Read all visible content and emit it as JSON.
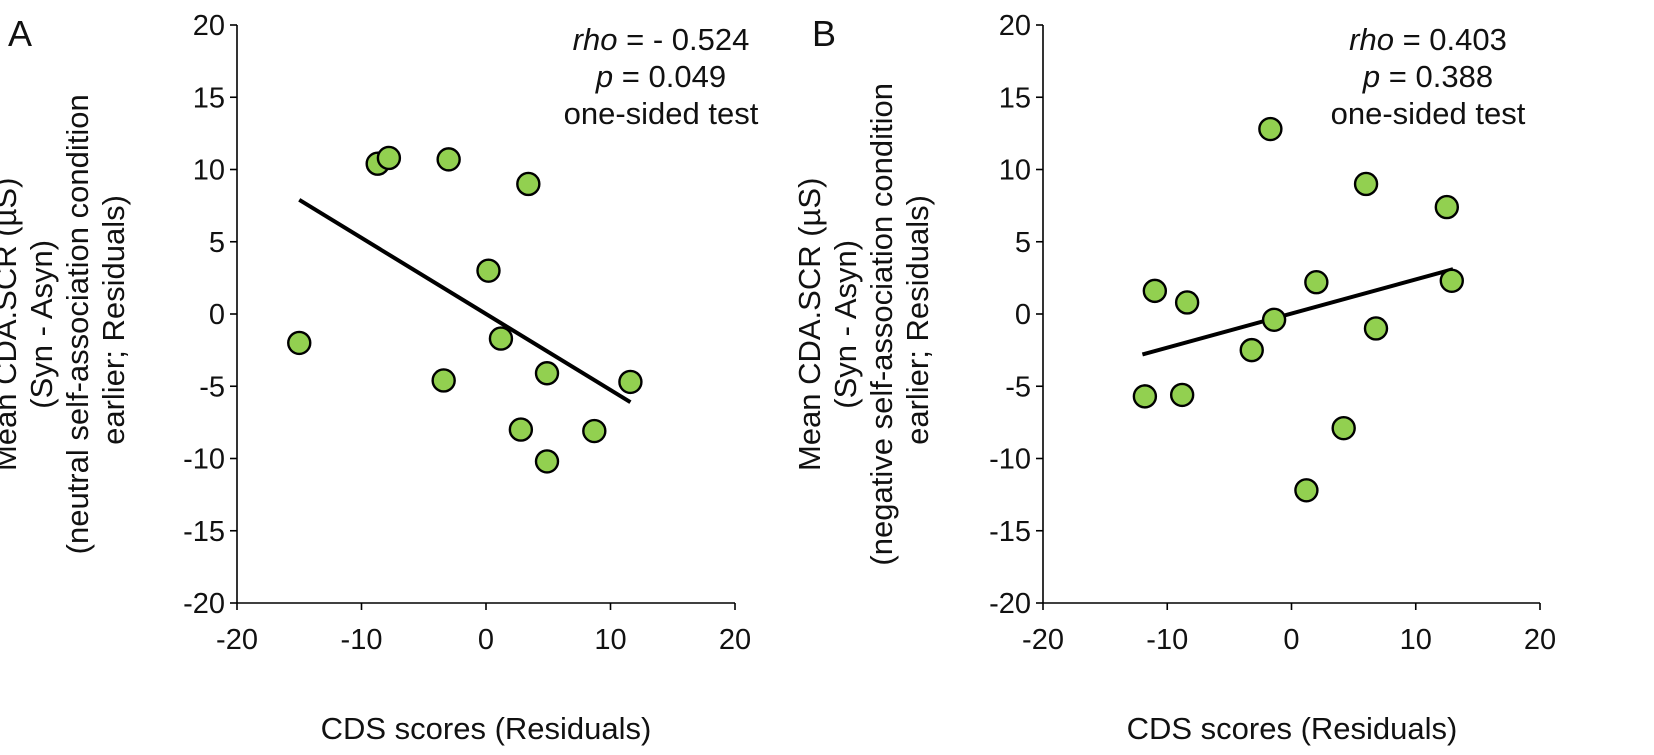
{
  "chart_data": [
    {
      "type": "scatter",
      "panel_label": "A",
      "xlabel": "CDS scores (Residuals)",
      "ylabel_lines": [
        "Mean CDA.SCR (µS)",
        "(Syn - Asyn)",
        "(neutral self-association condition",
        "earlier; Residuals)"
      ],
      "xlim": [
        -20,
        20
      ],
      "ylim": [
        -20,
        20
      ],
      "x_ticks": [
        -20,
        -10,
        0,
        10,
        20
      ],
      "y_ticks": [
        20,
        15,
        10,
        5,
        0,
        -5,
        -10,
        -15,
        -20
      ],
      "stats": {
        "rho_label": "rho",
        "rho_rest": " = - 0.524",
        "p_label": "p",
        "p_rest": " = 0.049",
        "test": "one-sided test"
      },
      "points": [
        {
          "x": -15.0,
          "y": -2.0
        },
        {
          "x": -8.7,
          "y": 10.4
        },
        {
          "x": -7.8,
          "y": 10.8
        },
        {
          "x": -3.0,
          "y": 10.7
        },
        {
          "x": -3.4,
          "y": -4.6
        },
        {
          "x": 0.2,
          "y": 3.0
        },
        {
          "x": 1.2,
          "y": -1.7
        },
        {
          "x": 3.4,
          "y": 9.0
        },
        {
          "x": 2.8,
          "y": -8.0
        },
        {
          "x": 4.9,
          "y": -4.1
        },
        {
          "x": 4.9,
          "y": -10.2
        },
        {
          "x": 8.7,
          "y": -8.1
        },
        {
          "x": 11.6,
          "y": -4.7
        }
      ],
      "fit_line": {
        "x": [
          -15.0,
          11.6
        ],
        "y": [
          7.9,
          -6.1
        ]
      },
      "marker_color": "#92d050",
      "line_color": "#000000"
    },
    {
      "type": "scatter",
      "panel_label": "B",
      "xlabel": "CDS scores (Residuals)",
      "ylabel_lines": [
        "Mean CDA.SCR (µS)",
        "(Syn - Asyn)",
        "(negative self-association condition",
        "earlier; Residuals)"
      ],
      "xlim": [
        -20,
        20
      ],
      "ylim": [
        -20,
        20
      ],
      "x_ticks": [
        -20,
        -10,
        0,
        10,
        20
      ],
      "y_ticks": [
        20,
        15,
        10,
        5,
        0,
        -5,
        -10,
        -15,
        -20
      ],
      "stats": {
        "rho_label": "rho",
        "rho_rest": " = 0.403",
        "p_label": "p",
        "p_rest": " = 0.388",
        "test": "one-sided test"
      },
      "points": [
        {
          "x": -11.8,
          "y": -5.7
        },
        {
          "x": -11.0,
          "y": 1.6
        },
        {
          "x": -8.8,
          "y": -5.6
        },
        {
          "x": -8.4,
          "y": 0.8
        },
        {
          "x": -3.2,
          "y": -2.5
        },
        {
          "x": -1.7,
          "y": 12.8
        },
        {
          "x": -1.4,
          "y": -0.4
        },
        {
          "x": 1.2,
          "y": -12.2
        },
        {
          "x": 2.0,
          "y": 2.2
        },
        {
          "x": 4.2,
          "y": -7.9
        },
        {
          "x": 6.0,
          "y": 9.0
        },
        {
          "x": 6.8,
          "y": -1.0
        },
        {
          "x": 12.5,
          "y": 7.4
        },
        {
          "x": 12.9,
          "y": 2.3
        }
      ],
      "fit_line": {
        "x": [
          -12.0,
          13.0
        ],
        "y": [
          -2.8,
          3.1
        ]
      },
      "marker_color": "#92d050",
      "line_color": "#000000"
    }
  ]
}
